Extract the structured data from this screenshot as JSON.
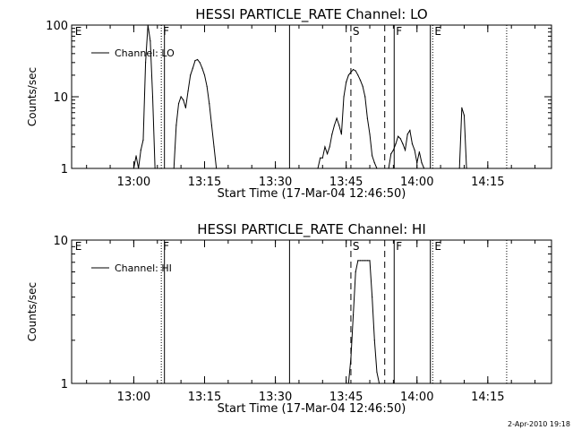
{
  "footer_timestamp": "2-Apr-2010 19:18",
  "chart_data": [
    {
      "type": "line",
      "title": "HESSI PARTICLE_RATE Channel: LO",
      "xlabel": "Start Time (17-Mar-04 12:46:50)",
      "ylabel": "Counts/sec",
      "y_scale": "log",
      "ylim": [
        1,
        100
      ],
      "ytick_labels": [
        "1",
        "10",
        "100"
      ],
      "xlim": [
        "12:46:50",
        "14:28:30"
      ],
      "xtick_labels": [
        "13:00",
        "13:15",
        "13:30",
        "13:45",
        "14:00",
        "14:15"
      ],
      "legend": {
        "position": "top-left",
        "entries": [
          "Channel: LO"
        ]
      },
      "series": [
        {
          "name": "Channel: LO",
          "x": [
            "13:00:00",
            "13:00:30",
            "13:01:00",
            "13:01:30",
            "13:02:00",
            "13:02:30",
            "13:03:00",
            "13:03:30",
            "13:04:00",
            "13:04:30",
            "13:05:00",
            "13:05:30",
            "13:08:30",
            "13:09:00",
            "13:09:30",
            "13:10:00",
            "13:10:30",
            "13:11:00",
            "13:11:30",
            "13:12:00",
            "13:12:30",
            "13:13:00",
            "13:13:30",
            "13:14:00",
            "13:14:30",
            "13:15:00",
            "13:15:30",
            "13:16:00",
            "13:16:30",
            "13:17:00",
            "13:17:30",
            "13:39:00",
            "13:39:30",
            "13:40:00",
            "13:40:30",
            "13:41:00",
            "13:41:30",
            "13:42:00",
            "13:42:30",
            "13:43:00",
            "13:43:30",
            "13:44:00",
            "13:44:30",
            "13:45:00",
            "13:45:30",
            "13:46:00",
            "13:46:30",
            "13:47:00",
            "13:47:30",
            "13:48:00",
            "13:48:30",
            "13:49:00",
            "13:49:30",
            "13:50:00",
            "13:50:30",
            "13:51:00",
            "13:51:30",
            "13:54:00",
            "13:54:30",
            "13:55:00",
            "13:55:30",
            "13:56:00",
            "13:56:30",
            "13:57:00",
            "13:57:30",
            "13:58:00",
            "13:58:30",
            "13:59:00",
            "13:59:30",
            "14:00:00",
            "14:00:30",
            "14:01:00",
            "14:01:30",
            "14:09:00",
            "14:09:30",
            "14:10:00",
            "14:10:30"
          ],
          "y": [
            1,
            1.5,
            1,
            1.8,
            2.5,
            30,
            100,
            60,
            10,
            1,
            1,
            1,
            1,
            4,
            8,
            10,
            9,
            7,
            12,
            20,
            25,
            32,
            33,
            30,
            25,
            20,
            14,
            8,
            4,
            2,
            1,
            1,
            1.4,
            1.4,
            2,
            1.6,
            2,
            3,
            4,
            5,
            4,
            3,
            10,
            16,
            20,
            22,
            24,
            23,
            20,
            17,
            14,
            10,
            5,
            3,
            1.5,
            1.2,
            1,
            1,
            1.6,
            1.8,
            2.2,
            2.8,
            2.6,
            2.2,
            1.8,
            3,
            3.4,
            2.2,
            1.8,
            1.2,
            1.7,
            1.2,
            1,
            1,
            7,
            5.5,
            1
          ]
        }
      ],
      "flag_lines": [
        {
          "time": "12:47:10",
          "style": "none",
          "label": "E"
        },
        {
          "time": "13:05:50",
          "style": "dotted",
          "label": "F"
        },
        {
          "time": "13:06:30",
          "style": "solid",
          "label": ""
        },
        {
          "time": "13:33:00",
          "style": "solid",
          "label": ""
        },
        {
          "time": "13:46:00",
          "style": "dashed",
          "label": "S"
        },
        {
          "time": "13:53:10",
          "style": "dashed",
          "label": ""
        },
        {
          "time": "13:55:10",
          "style": "solid",
          "label": "F"
        },
        {
          "time": "14:02:50",
          "style": "solid",
          "label": ""
        },
        {
          "time": "14:03:20",
          "style": "dotted",
          "label": "E"
        },
        {
          "time": "14:19:00",
          "style": "dotted",
          "label": ""
        }
      ]
    },
    {
      "type": "line",
      "title": "HESSI PARTICLE_RATE Channel: HI",
      "xlabel": "Start Time (17-Mar-04 12:46:50)",
      "ylabel": "Counts/sec",
      "y_scale": "log",
      "ylim": [
        1,
        10
      ],
      "ytick_labels": [
        "1",
        "10"
      ],
      "xlim": [
        "12:46:50",
        "14:28:30"
      ],
      "xtick_labels": [
        "13:00",
        "13:15",
        "13:30",
        "13:45",
        "14:00",
        "14:15"
      ],
      "legend": {
        "position": "top-left",
        "entries": [
          "Channel: HI"
        ]
      },
      "series": [
        {
          "name": "Channel: HI",
          "x": [
            "13:45:30",
            "13:46:00",
            "13:46:30",
            "13:47:00",
            "13:47:30",
            "13:48:00",
            "13:48:30",
            "13:49:00",
            "13:49:30",
            "13:50:00",
            "13:50:30",
            "13:51:00",
            "13:51:30",
            "13:52:00"
          ],
          "y": [
            1,
            1.5,
            3,
            6,
            7.2,
            7.2,
            7.2,
            7.2,
            7.2,
            7.2,
            4,
            2,
            1.2,
            1
          ]
        }
      ],
      "flag_lines": [
        {
          "time": "12:47:10",
          "style": "none",
          "label": "E"
        },
        {
          "time": "13:05:50",
          "style": "dotted",
          "label": "F"
        },
        {
          "time": "13:06:30",
          "style": "solid",
          "label": ""
        },
        {
          "time": "13:33:00",
          "style": "solid",
          "label": ""
        },
        {
          "time": "13:46:00",
          "style": "dashed",
          "label": "S"
        },
        {
          "time": "13:53:10",
          "style": "dashed",
          "label": ""
        },
        {
          "time": "13:55:10",
          "style": "solid",
          "label": "F"
        },
        {
          "time": "14:02:50",
          "style": "solid",
          "label": ""
        },
        {
          "time": "14:03:20",
          "style": "dotted",
          "label": "E"
        },
        {
          "time": "14:19:00",
          "style": "dotted",
          "label": ""
        }
      ]
    }
  ]
}
